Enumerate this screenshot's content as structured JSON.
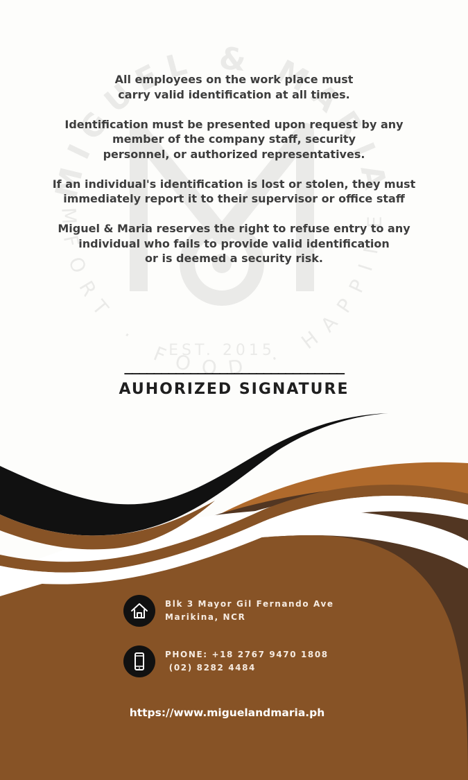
{
  "notice": {
    "paragraphs": [
      "All employees on the  work place must\ncarry valid identification at all times.",
      "Identification must be presented upon request by any\nmember of the  company staff, security\npersonnel, or authorized representatives.",
      "If an individual's identification is lost or stolen, they must\nimmediately report it to their supervisor or office staff",
      "Miguel & Maria  reserves the right to refuse entry to any\nindividual who fails to provide valid identification\nor is deemed a security risk."
    ]
  },
  "signature": {
    "line": "______________________________",
    "label": "AUHORIZED SIGNATURE"
  },
  "watermark": {
    "brand": "MIGUEL & MARIA",
    "est": "EST. 2015",
    "tagline": "COMFORT · FOOD · HAPPINESS"
  },
  "contact": {
    "address": "Blk 3 Mayor Gil Fernando Ave\nMarikina, NCR",
    "address_icon": "house-icon",
    "phone": "PHONE: +18 2767 9470 1808\n (02) 8282 4484",
    "phone_icon": "mobile-phone-icon",
    "website": "https://www.miguelandmaria.ph"
  },
  "colors": {
    "dark_brown": "#523622",
    "brown": "#875326",
    "copper": "#b06a2c",
    "black": "#111111",
    "text_dark": "#3d3d3d"
  }
}
